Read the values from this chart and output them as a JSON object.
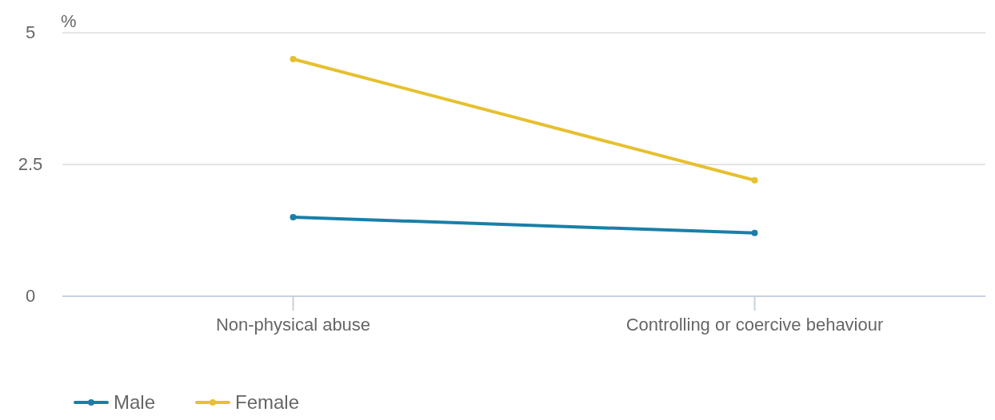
{
  "chart_data": {
    "type": "line",
    "ylabel": "%",
    "categories": [
      "Non-physical abuse",
      "Controlling or coercive behaviour"
    ],
    "series": [
      {
        "name": "Male",
        "color": "#1a7fa8",
        "values": [
          1.5,
          1.2
        ]
      },
      {
        "name": "Female",
        "color": "#e6c02f",
        "values": [
          4.5,
          2.2
        ]
      }
    ],
    "ylim": [
      0,
      5
    ],
    "yticks": [
      0,
      {
        "value": 2.5,
        "label": "2.5"
      },
      5
    ],
    "grid": "y",
    "legend": "bottom left",
    "marker": "circle",
    "line_style": "solid"
  }
}
